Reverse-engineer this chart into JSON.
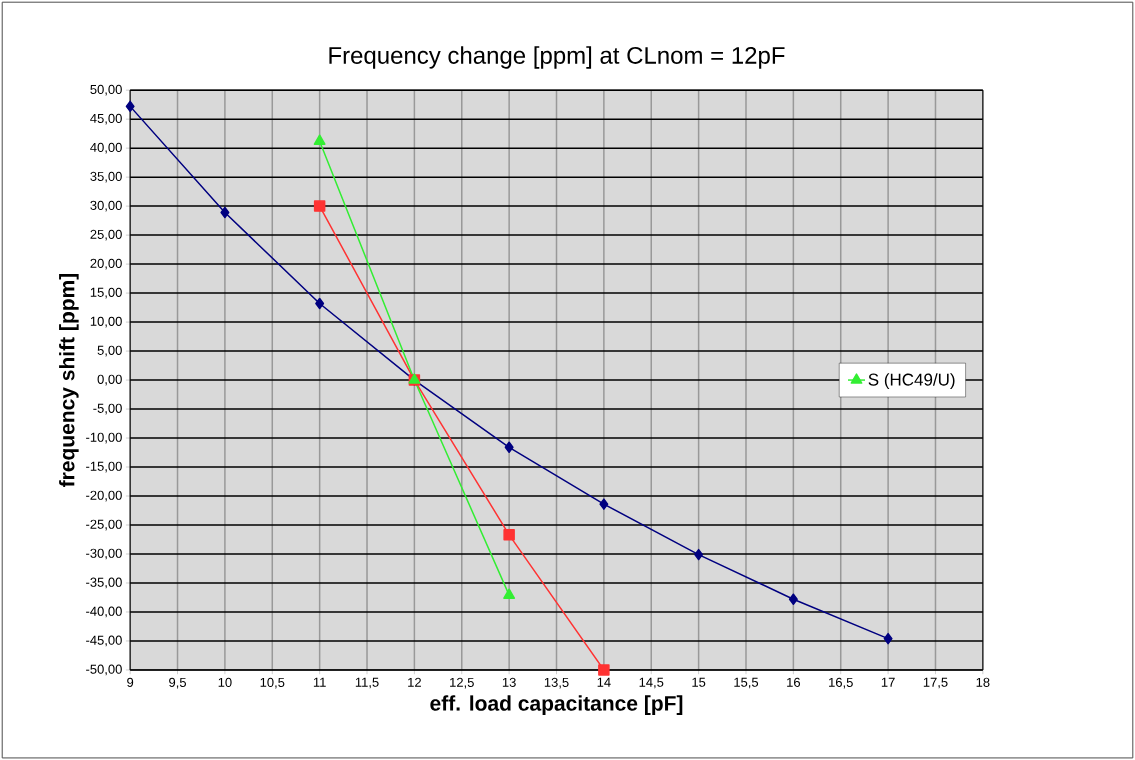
{
  "chart_data": {
    "type": "line",
    "title": "Frequency change [ppm] at CLnom = 12pF",
    "xlabel": "eff. load capacitance [pF]",
    "ylabel": "frequency shift  [ppm]",
    "series": [
      {
        "color": "#000080",
        "marker": "diamond",
        "x": [
          9,
          10,
          11,
          12,
          13,
          14,
          15,
          16,
          17
        ],
        "values": [
          47.2,
          28.9,
          13.2,
          0,
          -11.6,
          -21.4,
          -30.1,
          -37.8,
          -44.6
        ]
      },
      {
        "color": "#ff3333",
        "marker": "square",
        "x": [
          11,
          12,
          13,
          14
        ],
        "values": [
          30,
          0,
          -26.7,
          -50
        ]
      },
      {
        "name": "S (HC49/U)",
        "color": "#33ee33",
        "marker": "triangle",
        "x": [
          11,
          12,
          13
        ],
        "values": [
          41.2,
          0,
          -37.1
        ]
      }
    ],
    "xlim": [
      9,
      18
    ],
    "ylim": [
      -50,
      50
    ],
    "xticks": [
      9,
      {
        "value": 9.5,
        "label": "9,5"
      },
      10,
      {
        "value": 10.5,
        "label": "10,5"
      },
      11,
      {
        "value": 11.5,
        "label": "11,5"
      },
      12,
      {
        "value": 12.5,
        "label": "12,5"
      },
      13,
      {
        "value": 13.5,
        "label": "13,5"
      },
      14,
      {
        "value": 14.5,
        "label": "14,5"
      },
      15,
      {
        "value": 15.5,
        "label": "15,5"
      },
      16,
      {
        "value": 16.5,
        "label": "16,5"
      },
      17,
      {
        "value": 17.5,
        "label": "17,5"
      },
      18
    ],
    "yticks": [
      {
        "value": -50,
        "label": "-50,00"
      },
      {
        "value": -45,
        "label": "-45,00"
      },
      {
        "value": -40,
        "label": "-40,00"
      },
      {
        "value": -35,
        "label": "-35,00"
      },
      {
        "value": -30,
        "label": "-30,00"
      },
      {
        "value": -25,
        "label": "-25,00"
      },
      {
        "value": -20,
        "label": "-20,00"
      },
      {
        "value": -15,
        "label": "-15,00"
      },
      {
        "value": -10,
        "label": "-10,00"
      },
      {
        "value": -5,
        "label": "-5,00"
      },
      {
        "value": 0,
        "label": "0,00"
      },
      {
        "value": 5,
        "label": "5,00"
      },
      {
        "value": 10,
        "label": "10,00"
      },
      {
        "value": 15,
        "label": "15,00"
      },
      {
        "value": 20,
        "label": "20,00"
      },
      {
        "value": 25,
        "label": "25,00"
      },
      {
        "value": 30,
        "label": "30,00"
      },
      {
        "value": 35,
        "label": "35,00"
      },
      {
        "value": 40,
        "label": "40,00"
      },
      {
        "value": 45,
        "label": "45,00"
      },
      {
        "value": 50,
        "label": "50,00"
      }
    ],
    "grid": true,
    "legend": "right"
  }
}
